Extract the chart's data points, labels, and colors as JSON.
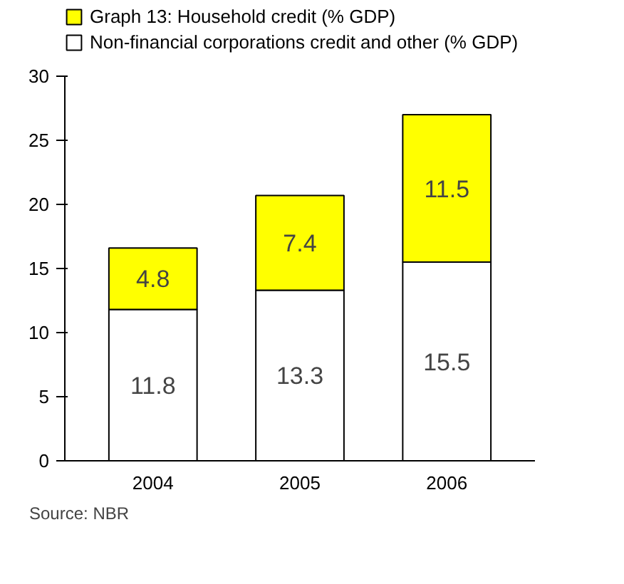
{
  "chart_data": {
    "type": "bar",
    "stacked": true,
    "categories": [
      "2004",
      "2005",
      "2006"
    ],
    "series": [
      {
        "name": "Non-financial corporations credit and other (% GDP)",
        "color": "#ffffff",
        "values": [
          11.8,
          13.3,
          15.5
        ]
      },
      {
        "name": "Graph 13: Household credit (% GDP)",
        "color": "#ffff00",
        "values": [
          4.8,
          7.4,
          11.5
        ]
      }
    ],
    "ylim": [
      0,
      30
    ],
    "yticks": [
      0,
      5,
      10,
      15,
      20,
      25,
      30
    ],
    "grid": false,
    "legend": "top",
    "data_labels": true,
    "annotations": [
      "Source: NBR"
    ]
  }
}
